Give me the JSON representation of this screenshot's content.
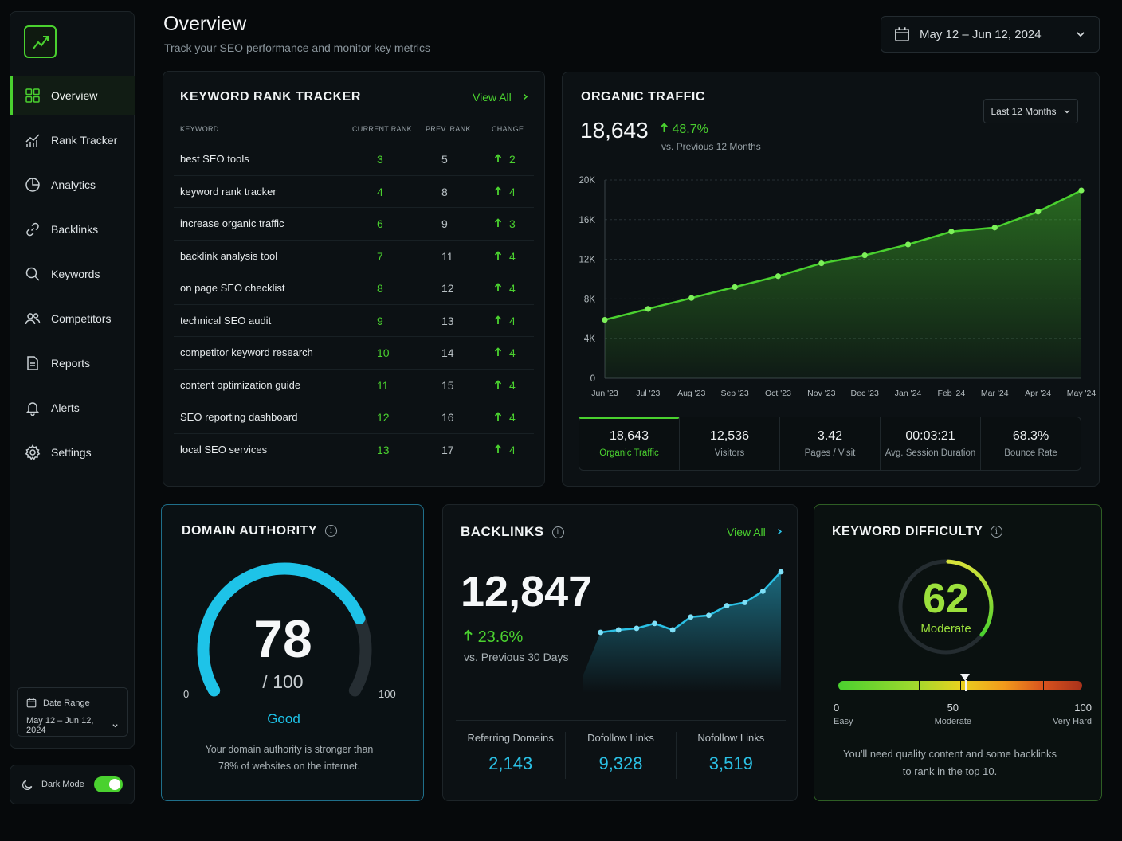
{
  "header": {
    "title": "Overview",
    "subtitle": "Track your SEO performance and monitor key metrics",
    "date_range": "May 12 – Jun 12, 2024"
  },
  "sidebar": {
    "items": [
      {
        "label": "Overview",
        "icon": "grid-icon",
        "active": true
      },
      {
        "label": "Rank Tracker",
        "icon": "chart-line-icon"
      },
      {
        "label": "Analytics",
        "icon": "pie-chart-icon"
      },
      {
        "label": "Backlinks",
        "icon": "link-icon"
      },
      {
        "label": "Keywords",
        "icon": "search-icon"
      },
      {
        "label": "Competitors",
        "icon": "users-icon"
      },
      {
        "label": "Reports",
        "icon": "document-icon"
      },
      {
        "label": "Alerts",
        "icon": "bell-icon"
      },
      {
        "label": "Settings",
        "icon": "gear-icon"
      }
    ],
    "date_box": {
      "label": "Date Range",
      "value": "May 12 – Jun 12, 2024"
    },
    "dark_mode": {
      "label": "Dark Mode",
      "on": true
    }
  },
  "keyword_tracker": {
    "title": "KEYWORD RANK TRACKER",
    "view_all": "View All",
    "columns": [
      "KEYWORD",
      "CURRENT RANK",
      "PREV. RANK",
      "CHANGE"
    ],
    "rows": [
      {
        "keyword": "best SEO tools",
        "current": "3",
        "prev": "5",
        "change": "2"
      },
      {
        "keyword": "keyword rank tracker",
        "current": "4",
        "prev": "8",
        "change": "4"
      },
      {
        "keyword": "increase organic traffic",
        "current": "6",
        "prev": "9",
        "change": "3"
      },
      {
        "keyword": "backlink analysis tool",
        "current": "7",
        "prev": "11",
        "change": "4"
      },
      {
        "keyword": "on page SEO checklist",
        "current": "8",
        "prev": "12",
        "change": "4"
      },
      {
        "keyword": "technical SEO audit",
        "current": "9",
        "prev": "13",
        "change": "4"
      },
      {
        "keyword": "competitor keyword research",
        "current": "10",
        "prev": "14",
        "change": "4"
      },
      {
        "keyword": "content optimization guide",
        "current": "11",
        "prev": "15",
        "change": "4"
      },
      {
        "keyword": "SEO reporting dashboard",
        "current": "12",
        "prev": "16",
        "change": "4"
      },
      {
        "keyword": "local SEO services",
        "current": "13",
        "prev": "17",
        "change": "4"
      }
    ]
  },
  "organic_traffic": {
    "title": "ORGANIC TRAFFIC",
    "value": "18,643",
    "change": "48.7%",
    "compare": "vs. Previous 12 Months",
    "range_button": "Last 12 Months",
    "stats": [
      {
        "value": "18,643",
        "label": "Organic Traffic",
        "active": true
      },
      {
        "value": "12,536",
        "label": "Visitors"
      },
      {
        "value": "3.42",
        "label": "Pages / Visit"
      },
      {
        "value": "00:03:21",
        "label": "Avg. Session Duration"
      },
      {
        "value": "68.3%",
        "label": "Bounce Rate"
      }
    ]
  },
  "chart_data": [
    {
      "type": "area",
      "x": [
        "Jun '23",
        "Jul '23",
        "Aug '23",
        "Sep '23",
        "Oct '23",
        "Nov '23",
        "Dec '23",
        "Jan '24",
        "Feb '24",
        "Mar '24",
        "Apr '24",
        "May '24"
      ],
      "values": [
        5900,
        7000,
        8100,
        9200,
        10300,
        11600,
        12400,
        13500,
        14800,
        15200,
        16800,
        18950
      ],
      "ylim": [
        0,
        20000
      ],
      "yticks": [
        "0",
        "4K",
        "8K",
        "12K",
        "16K",
        "20K"
      ],
      "grid": true,
      "color": "#4ad12f"
    },
    {
      "type": "area",
      "values": [
        20,
        75,
        78,
        80,
        86,
        78,
        94,
        96,
        108,
        112,
        126,
        150
      ],
      "color": "#2bc0e4"
    }
  ],
  "domain_authority": {
    "title": "DOMAIN AUTHORITY",
    "value": 78,
    "max_label": "/ 100",
    "min_tick": "0",
    "max_tick": "100",
    "rating": "Good",
    "description_line1": "Your domain authority is stronger than",
    "description_line2": "78% of websites on the internet.",
    "color": "#1ec3e8"
  },
  "backlinks": {
    "title": "BACKLINKS",
    "view_all": "View All",
    "value": "12,847",
    "change": "23.6%",
    "compare": "vs. Previous 30 Days",
    "metrics": [
      {
        "label": "Referring Domains",
        "value": "2,143"
      },
      {
        "label": "Dofollow Links",
        "value": "9,328"
      },
      {
        "label": "Nofollow Links",
        "value": "3,519"
      }
    ]
  },
  "keyword_difficulty": {
    "title": "KEYWORD DIFFICULTY",
    "value": 62,
    "rating": "Moderate",
    "scale": [
      {
        "num": "0",
        "label": "Easy"
      },
      {
        "num": "50",
        "label": "Moderate"
      },
      {
        "num": "100",
        "label": "Very Hard"
      }
    ],
    "description_line1": "You'll need quality content and some backlinks",
    "description_line2": "to rank in the top 10."
  }
}
